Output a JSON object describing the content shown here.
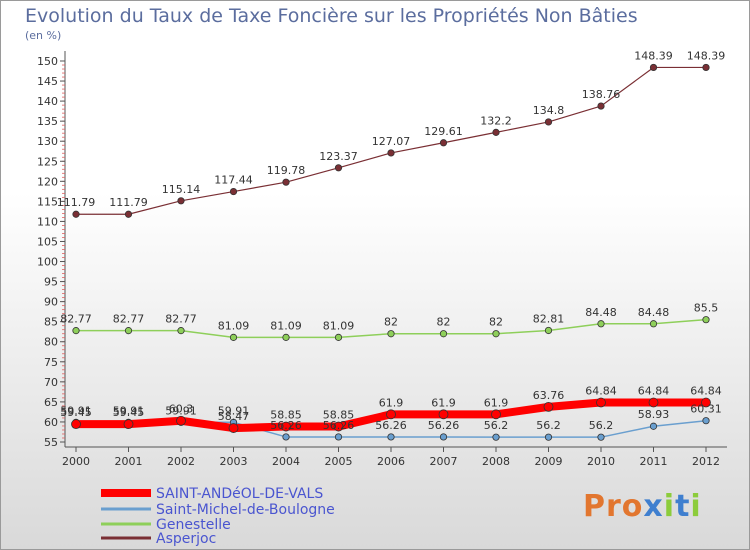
{
  "title": "Evolution du Taux de Taxe Foncière sur les Propriétés Non Bâties",
  "unit_label": "(en %)",
  "logo_text": "Proxiti",
  "chart_data": {
    "type": "line",
    "title": "Evolution du Taux de Taxe Foncière sur les Propriétés Non Bâties",
    "ylabel": "(en %)",
    "xlabel": "",
    "x": [
      "2000",
      "2001",
      "2002",
      "2003",
      "2004",
      "2005",
      "2006",
      "2007",
      "2008",
      "2009",
      "2010",
      "2011",
      "2012"
    ],
    "ylim": [
      55,
      150
    ],
    "yticks": [
      55,
      60,
      65,
      70,
      75,
      80,
      85,
      90,
      95,
      100,
      105,
      110,
      115,
      120,
      125,
      130,
      135,
      140,
      145,
      150
    ],
    "grid": false,
    "legend_position": "bottom-left",
    "series": [
      {
        "name": "SAINT-ANDéOL-DE-VALS",
        "color": "#ff0000",
        "values": [
          59.45,
          59.45,
          60.3,
          58.47,
          58.85,
          58.85,
          61.9,
          61.9,
          61.9,
          63.76,
          64.84,
          64.84,
          64.84
        ],
        "labels": [
          "59.45",
          "59.45",
          "60.3",
          "58.47",
          "58.85",
          "58.85",
          "61.9",
          "61.9",
          "61.9",
          "63.76",
          "64.84",
          "64.84",
          "64.84"
        ]
      },
      {
        "name": "Saint-Michel-de-Boulogne",
        "color": "#6a9fcf",
        "values": [
          59.91,
          59.91,
          59.91,
          59.91,
          56.26,
          56.26,
          56.26,
          56.26,
          56.2,
          56.2,
          56.2,
          58.93,
          60.31
        ],
        "labels": [
          "59.91",
          "59.91",
          "59.91",
          "59.91",
          "56.26",
          "56.26",
          "56.26",
          "56.26",
          "56.2",
          "56.2",
          "56.2",
          "58.93",
          "60.31"
        ]
      },
      {
        "name": "Genestelle",
        "color": "#8ecf5a",
        "values": [
          82.77,
          82.77,
          82.77,
          81.09,
          81.09,
          81.09,
          82,
          82,
          82,
          82.81,
          84.48,
          84.48,
          85.5
        ],
        "labels": [
          "82.77",
          "82.77",
          "82.77",
          "81.09",
          "81.09",
          "81.09",
          "82",
          "82",
          "82",
          "82.81",
          "84.48",
          "84.48",
          "85.5"
        ]
      },
      {
        "name": "Asperjoc",
        "color": "#7a2f34",
        "values": [
          111.79,
          111.79,
          115.14,
          117.44,
          119.78,
          123.37,
          127.07,
          129.61,
          132.2,
          134.8,
          138.76,
          148.39,
          148.39
        ],
        "labels": [
          "111.79",
          "111.79",
          "115.14",
          "117.44",
          "119.78",
          "123.37",
          "127.07",
          "129.61",
          "132.2",
          "134.8",
          "138.76",
          "148.39",
          "148.39"
        ]
      }
    ]
  }
}
